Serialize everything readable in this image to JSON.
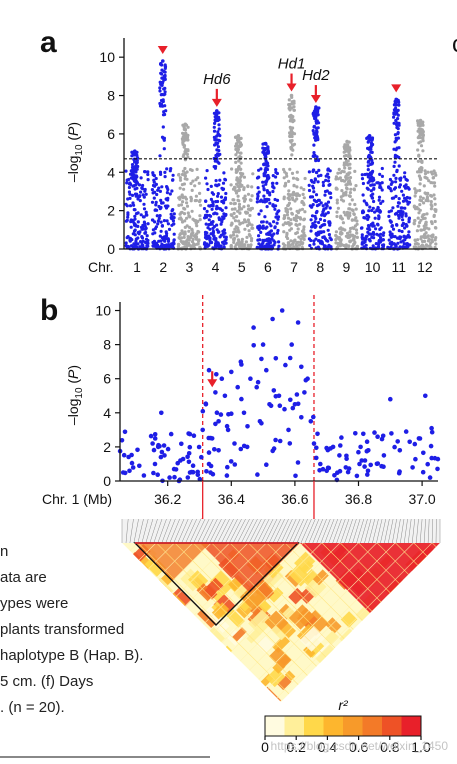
{
  "panel_a": {
    "label": "a"
  },
  "panel_b": {
    "label": "b"
  },
  "panel_partial": {
    "label": "c"
  },
  "colors": {
    "blue": "#1e1ee6",
    "gray": "#a8a8a8",
    "red": "#e8202a",
    "legend_bar": [
      "#fffbe0",
      "#ffef9a",
      "#ffd84a",
      "#fdb62e",
      "#f79a2a",
      "#f37a28",
      "#ee5226",
      "#e8202a"
    ]
  },
  "caption_lines": [
    "n",
    "ata are",
    "ypes were",
    "plants transformed",
    "haplotype B (Hap. B).",
    "5 cm. (f) Days",
    ". (n = 20)."
  ],
  "watermark": "https://blog.csdn.net/weixin_1450",
  "chart_data": [
    {
      "type": "scatter",
      "title": "",
      "xlabel": "Chr.",
      "ylabel": "–log10 (P)",
      "ylim": [
        0,
        11
      ],
      "yticks": [
        0,
        2,
        4,
        6,
        8,
        10
      ],
      "categories": [
        "1",
        "2",
        "3",
        "4",
        "5",
        "6",
        "7",
        "8",
        "9",
        "10",
        "11",
        "12"
      ],
      "threshold": 4.7,
      "series": [
        {
          "values": [
            5.1,
            9.8,
            6.5,
            7.2,
            5.9,
            5.5,
            8.0,
            7.4,
            5.6,
            5.9,
            7.8,
            6.7
          ]
        }
      ],
      "chromosome_colors": [
        "blue",
        "blue",
        "gray",
        "blue",
        "gray",
        "blue",
        "gray",
        "blue",
        "gray",
        "blue",
        "blue",
        "gray"
      ],
      "annotations": [
        {
          "label": "",
          "category": "2",
          "value": 9.8
        },
        {
          "label": "Hd6",
          "category": "4",
          "value": 7.2
        },
        {
          "label": "Hd1",
          "category": "7",
          "value": 8.0
        },
        {
          "label": "Hd2",
          "category": "8",
          "value": 7.4
        },
        {
          "label": "",
          "category": "11",
          "value": 7.8
        }
      ],
      "grid": false
    },
    {
      "type": "scatter",
      "title": "",
      "xlabel": "Chr. 1 (Mb)",
      "ylabel": "–log10 (P)",
      "xlim": [
        36.05,
        37.05
      ],
      "ylim": [
        0,
        10.5
      ],
      "xticks": [
        36.2,
        36.4,
        36.6,
        36.8,
        37.0
      ],
      "xtick_labels": [
        "36.2",
        "36.4",
        "36.6",
        "36.8",
        "37.0"
      ],
      "yticks": [
        0,
        2,
        4,
        6,
        8,
        10
      ],
      "region": [
        36.31,
        36.66
      ],
      "arrow_at": {
        "x": 36.34,
        "y": 5.5
      },
      "series": [
        {
          "x": [
            36.06,
            36.08,
            36.16,
            36.17,
            36.18,
            36.19,
            36.22,
            36.24,
            36.27,
            36.28,
            36.31,
            36.32,
            36.33,
            36.33,
            36.34,
            36.35,
            36.36,
            36.36,
            36.37,
            36.38,
            36.39,
            36.4,
            36.41,
            36.42,
            36.43,
            36.44,
            36.45,
            36.46,
            36.47,
            36.48,
            36.49,
            36.5,
            36.51,
            36.52,
            36.53,
            36.54,
            36.55,
            36.56,
            36.57,
            36.58,
            36.59,
            36.6,
            36.61,
            36.62,
            36.63,
            36.64,
            36.65,
            36.66,
            36.68,
            36.7,
            36.72,
            36.74,
            36.76,
            36.79,
            36.81,
            36.83,
            36.86,
            36.88,
            36.9,
            36.93,
            36.95,
            36.97,
            36.99,
            37.01,
            37.03
          ],
          "y": [
            0.5,
            0.6,
            1.0,
            2.0,
            4.0,
            1.5,
            0.7,
            1.2,
            0.5,
            0.9,
            3.0,
            4.5,
            1.0,
            6.5,
            2.5,
            5.2,
            3.5,
            1.8,
            6.0,
            5.0,
            3.0,
            6.4,
            2.2,
            5.5,
            7.0,
            4.0,
            2.0,
            6.0,
            9.0,
            5.5,
            3.5,
            8.0,
            6.5,
            4.5,
            9.5,
            7.2,
            5.0,
            10.0,
            6.8,
            3.0,
            8.0,
            4.5,
            9.3,
            6.7,
            5.2,
            6.0,
            3.5,
            2.2,
            1.0,
            0.6,
            2.0,
            1.5,
            0.8,
            2.8,
            1.2,
            0.6,
            2.6,
            1.5,
            4.8,
            1.8,
            2.9,
            0.8,
            2.5,
            5.0,
            3.1
          ]
        }
      ],
      "grid": false
    },
    {
      "type": "heatmap",
      "title": "",
      "legend_title": "r²",
      "colorbar_ticks": [
        "0",
        "0.2",
        "0.4",
        "0.6",
        "0.8",
        "1.0"
      ],
      "region": [
        36.31,
        36.66
      ]
    }
  ]
}
